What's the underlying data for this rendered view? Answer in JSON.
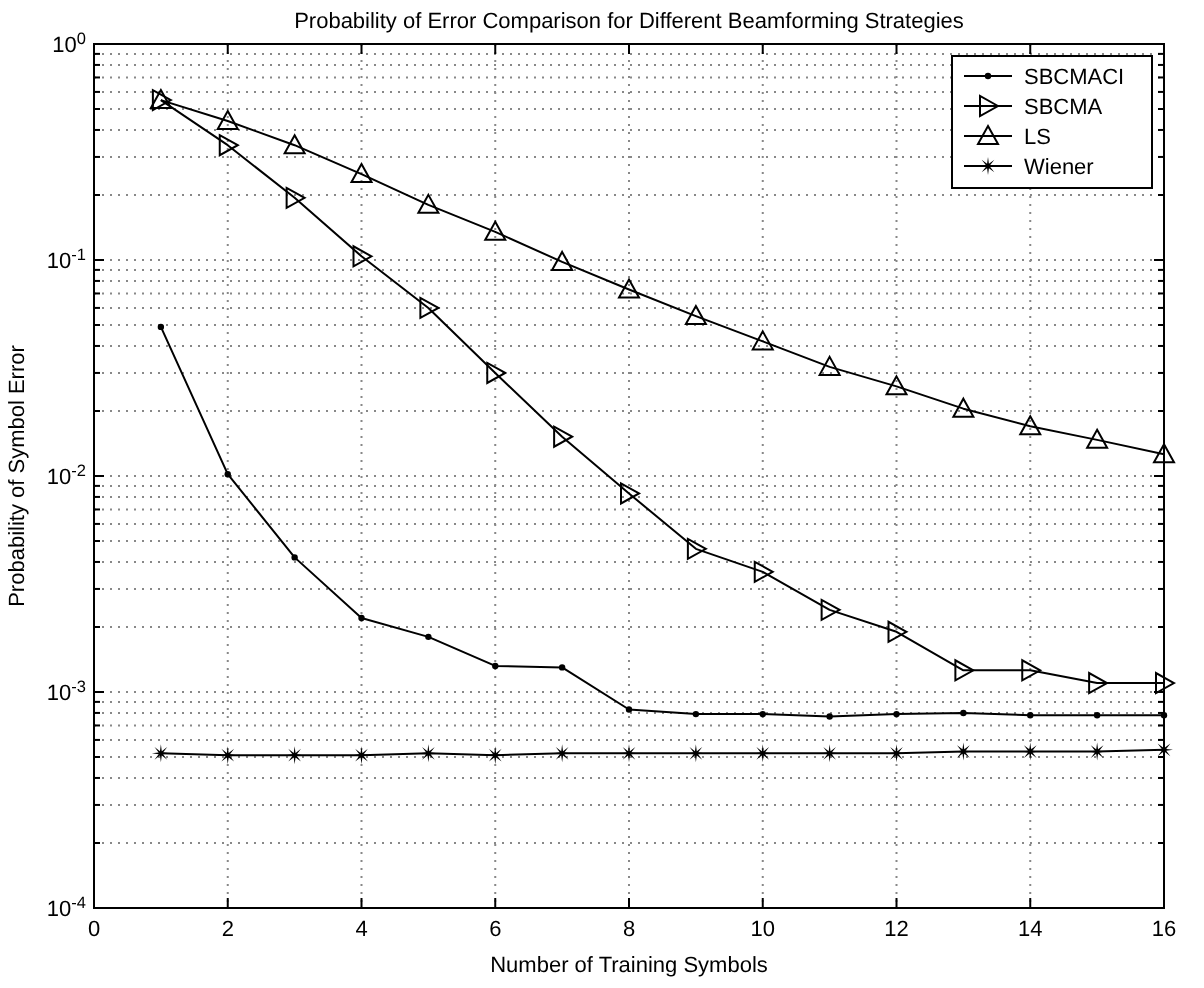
{
  "chart_data": {
    "type": "line",
    "title": "Probability of Error Comparison for Different Beamforming Strategies",
    "xlabel": "Number of Training Symbols",
    "ylabel": "Probability of Symbol Error",
    "x": [
      1,
      2,
      3,
      4,
      5,
      6,
      7,
      8,
      9,
      10,
      11,
      12,
      13,
      14,
      15,
      16
    ],
    "series": [
      {
        "name": "SBCMACI",
        "color": "#000000",
        "marker": "circle",
        "values": [
          0.049,
          0.0102,
          0.0042,
          0.0022,
          0.0018,
          0.00132,
          0.0013,
          0.00083,
          0.00079,
          0.00079,
          0.00077,
          0.00079,
          0.0008,
          0.00078,
          0.00078,
          0.00078
        ]
      },
      {
        "name": "SBCMA",
        "color": "#000000",
        "marker": "triangle-right",
        "values": [
          0.55,
          0.34,
          0.194,
          0.104,
          0.06,
          0.03,
          0.0152,
          0.0083,
          0.0046,
          0.0036,
          0.0024,
          0.0019,
          0.00126,
          0.00126,
          0.0011,
          0.0011
        ]
      },
      {
        "name": "LS",
        "color": "#000000",
        "marker": "triangle",
        "values": [
          0.55,
          0.44,
          0.34,
          0.25,
          0.18,
          0.135,
          0.098,
          0.073,
          0.055,
          0.042,
          0.032,
          0.026,
          0.0205,
          0.017,
          0.0147,
          0.0126
        ]
      },
      {
        "name": "Wiener",
        "color": "#000000",
        "marker": "star",
        "values": [
          0.00052,
          0.00051,
          0.00051,
          0.00051,
          0.00052,
          0.00051,
          0.00052,
          0.00052,
          0.00052,
          0.00052,
          0.00052,
          0.00052,
          0.00053,
          0.00053,
          0.00053,
          0.00054
        ]
      }
    ],
    "xlim": [
      0,
      16
    ],
    "xticks": [
      0,
      2,
      4,
      6,
      8,
      10,
      12,
      14,
      16
    ],
    "ylim": [
      0.0001,
      1
    ],
    "yticks": [
      {
        "value": 0.0001,
        "label": "10$^{-4}$"
      },
      {
        "value": 0.001,
        "label": "10$^{-3}$"
      },
      {
        "value": 0.01,
        "label": "10$^{-2}$"
      },
      {
        "value": 0.1,
        "label": "10$^{-1}$"
      },
      {
        "value": 1,
        "label": "10$^{0}$"
      }
    ],
    "log": "y",
    "grid": true,
    "legend": "top right",
    "line_style": "solid"
  }
}
